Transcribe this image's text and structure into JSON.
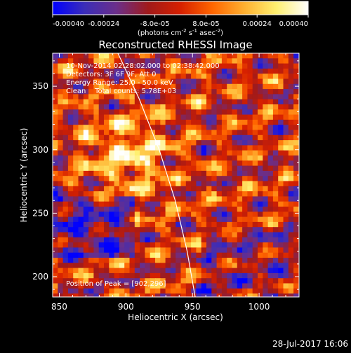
{
  "chart_data": {
    "type": "heatmap",
    "title": "Reconstructed RHESSI Image",
    "xlabel": "Heliocentric X (arcsec)",
    "ylabel": "Heliocentric Y (arcsec)",
    "xlim": [
      845,
      1030
    ],
    "ylim": [
      184,
      376
    ],
    "x_ticks": [
      850,
      900,
      950,
      1000
    ],
    "y_ticks": [
      200,
      250,
      300,
      350
    ],
    "colorbar": {
      "range": [
        -0.0004,
        0.0004
      ],
      "tick_values": [
        -0.0004,
        -0.00024,
        -8e-05,
        8e-05,
        0.00024,
        0.0004
      ],
      "tick_labels": [
        "-0.00040",
        "-0.00024",
        "-8.0e-05",
        "8.0e-05",
        "0.00024",
        "0.00040"
      ],
      "unit_label_prefix": "(photons cm",
      "unit_label_exp1": "-2",
      "unit_label_mid": " s",
      "unit_label_exp2": "-1",
      "unit_label_mid2": " asec",
      "unit_label_exp3": "-2",
      "unit_label_suffix": ")"
    },
    "info_lines": [
      "10-Nov-2014 02:28:02.000 to 02:38:42.000",
      "Detectors: 3F 6F 9F, Att 0",
      "Energy Range: 25.0 - 50.0 keV",
      "Clean    Total counts: 5.78E+03"
    ],
    "peak_label": "Position of Peak = [902,296]",
    "peak_position": [
      902,
      296
    ],
    "limb_curve": [
      [
        894,
        376
      ],
      [
        910,
        340
      ],
      [
        925,
        300
      ],
      [
        937,
        260
      ],
      [
        946,
        220
      ],
      [
        952,
        184
      ]
    ],
    "colors": {
      "background": "#000000",
      "limb": "#ffffff",
      "colormap": [
        "#0000ff",
        "#3b2db8",
        "#6b2f8a",
        "#a11a1a",
        "#d62000",
        "#ff6600",
        "#ffb030",
        "#fff070",
        "#ffffff"
      ]
    }
  },
  "timestamp": "28-Jul-2017 16:06"
}
